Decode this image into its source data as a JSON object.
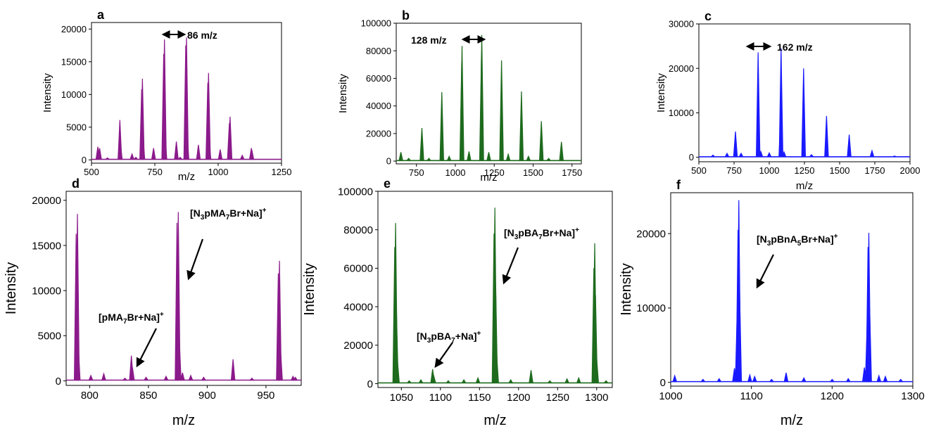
{
  "chart_data": [
    {
      "panel": "a",
      "type": "line",
      "color": "#8b1a8b",
      "xlabel": "m/z",
      "ylabel": "Intensity",
      "xlim": [
        500,
        1250
      ],
      "ylim": [
        -500,
        21000
      ],
      "xticks": [
        500,
        750,
        1000,
        1250
      ],
      "yticks": [
        0,
        5000,
        10000,
        15000,
        20000
      ],
      "peaks": [
        {
          "x": 525,
          "y": 2000
        },
        {
          "x": 532,
          "y": 1800
        },
        {
          "x": 563,
          "y": 300
        },
        {
          "x": 612,
          "y": 6100
        },
        {
          "x": 614,
          "y": 2500
        },
        {
          "x": 660,
          "y": 900
        },
        {
          "x": 675,
          "y": 400
        },
        {
          "x": 698,
          "y": 10800
        },
        {
          "x": 701,
          "y": 12400
        },
        {
          "x": 703,
          "y": 3500
        },
        {
          "x": 745,
          "y": 1800
        },
        {
          "x": 785,
          "y": 16200
        },
        {
          "x": 788,
          "y": 18400
        },
        {
          "x": 790,
          "y": 4000
        },
        {
          "x": 835,
          "y": 2800
        },
        {
          "x": 850,
          "y": 400
        },
        {
          "x": 872,
          "y": 17500
        },
        {
          "x": 875,
          "y": 18700
        },
        {
          "x": 877,
          "y": 4500
        },
        {
          "x": 922,
          "y": 2300
        },
        {
          "x": 959,
          "y": 11800
        },
        {
          "x": 962,
          "y": 13300
        },
        {
          "x": 964,
          "y": 3000
        },
        {
          "x": 1008,
          "y": 1600
        },
        {
          "x": 1044,
          "y": 5600
        },
        {
          "x": 1047,
          "y": 6600
        },
        {
          "x": 1095,
          "y": 700
        },
        {
          "x": 1131,
          "y": 1800
        },
        {
          "x": 1133,
          "y": 1500
        }
      ],
      "annotations": [
        {
          "text": "86 m/z"
        }
      ]
    },
    {
      "panel": "b",
      "type": "line",
      "color": "#1e6b1e",
      "xlabel": "m/z",
      "ylabel": "Intensity",
      "xlim": [
        620,
        1810
      ],
      "ylim": [
        -2000,
        100000
      ],
      "xticks": [
        750,
        1000,
        1250,
        1500,
        1750
      ],
      "yticks": [
        0,
        20000,
        40000,
        60000,
        80000,
        100000
      ],
      "peaks": [
        {
          "x": 650,
          "y": 6500
        },
        {
          "x": 700,
          "y": 2000
        },
        {
          "x": 785,
          "y": 24000
        },
        {
          "x": 830,
          "y": 2000
        },
        {
          "x": 913,
          "y": 50000
        },
        {
          "x": 960,
          "y": 3500
        },
        {
          "x": 1041,
          "y": 72000
        },
        {
          "x": 1043,
          "y": 83500
        },
        {
          "x": 1088,
          "y": 7000
        },
        {
          "x": 1168,
          "y": 78000
        },
        {
          "x": 1170,
          "y": 91500
        },
        {
          "x": 1215,
          "y": 6500
        },
        {
          "x": 1297,
          "y": 73000
        },
        {
          "x": 1340,
          "y": 5000
        },
        {
          "x": 1425,
          "y": 50500
        },
        {
          "x": 1470,
          "y": 3500
        },
        {
          "x": 1553,
          "y": 29000
        },
        {
          "x": 1600,
          "y": 2000
        },
        {
          "x": 1682,
          "y": 14000
        }
      ],
      "annotations": [
        {
          "text": "128 m/z"
        }
      ]
    },
    {
      "panel": "c",
      "type": "line",
      "color": "#1a1aff",
      "xlabel": "m/z",
      "ylabel": "Intensity",
      "xlim": [
        500,
        2000
      ],
      "ylim": [
        -1000,
        30000
      ],
      "xticks": [
        500,
        750,
        1000,
        1250,
        1500,
        1750,
        2000
      ],
      "yticks": [
        0,
        10000,
        20000,
        30000
      ],
      "peaks": [
        {
          "x": 600,
          "y": 500
        },
        {
          "x": 700,
          "y": 900
        },
        {
          "x": 760,
          "y": 5800
        },
        {
          "x": 800,
          "y": 900
        },
        {
          "x": 921,
          "y": 23600
        },
        {
          "x": 940,
          "y": 1300
        },
        {
          "x": 1000,
          "y": 1000
        },
        {
          "x": 1082,
          "y": 9000
        },
        {
          "x": 1084,
          "y": 24500
        },
        {
          "x": 1105,
          "y": 1200
        },
        {
          "x": 1244,
          "y": 20000
        },
        {
          "x": 1300,
          "y": 600
        },
        {
          "x": 1407,
          "y": 9300
        },
        {
          "x": 1568,
          "y": 5100
        },
        {
          "x": 1730,
          "y": 1500
        },
        {
          "x": 1890,
          "y": 300
        }
      ],
      "annotations": [
        {
          "text": "162 m/z"
        }
      ]
    },
    {
      "panel": "d",
      "type": "line",
      "color": "#8b1a8b",
      "xlabel": "m/z",
      "ylabel": "Intensity",
      "xlim": [
        780,
        980
      ],
      "ylim": [
        -500,
        21000
      ],
      "xticks": [
        800,
        850,
        900,
        950
      ],
      "yticks": [
        0,
        5000,
        10000,
        15000,
        20000
      ],
      "peaks": [
        {
          "x": 788.5,
          "y": 16300
        },
        {
          "x": 789.6,
          "y": 18500
        },
        {
          "x": 790.3,
          "y": 4000
        },
        {
          "x": 801,
          "y": 600
        },
        {
          "x": 812,
          "y": 800
        },
        {
          "x": 830,
          "y": 300
        },
        {
          "x": 835.5,
          "y": 2800
        },
        {
          "x": 836.4,
          "y": 1500
        },
        {
          "x": 848,
          "y": 400
        },
        {
          "x": 865,
          "y": 500
        },
        {
          "x": 874.3,
          "y": 17500
        },
        {
          "x": 875.4,
          "y": 18700
        },
        {
          "x": 876.2,
          "y": 4800
        },
        {
          "x": 879,
          "y": 900
        },
        {
          "x": 886,
          "y": 600
        },
        {
          "x": 897,
          "y": 400
        },
        {
          "x": 922,
          "y": 2400
        },
        {
          "x": 938,
          "y": 300
        },
        {
          "x": 960.5,
          "y": 11900
        },
        {
          "x": 961.5,
          "y": 13300
        },
        {
          "x": 962.4,
          "y": 3500
        },
        {
          "x": 973,
          "y": 500
        },
        {
          "x": 975,
          "y": 400
        }
      ],
      "annotations": [
        {
          "main": "[pMA",
          "sub1": "7",
          "rest": "Br+Na]",
          "sup": "+"
        },
        {
          "main": "[N",
          "sub1": "3",
          "mid": "pMA",
          "sub2": "7",
          "rest": "Br+Na]",
          "sup": "+"
        }
      ]
    },
    {
      "panel": "e",
      "type": "line",
      "color": "#1e6b1e",
      "xlabel": "m/z",
      "ylabel": "Intensity",
      "xlim": [
        1020,
        1320
      ],
      "ylim": [
        -2000,
        100000
      ],
      "xticks": [
        1050,
        1100,
        1150,
        1200,
        1250,
        1300
      ],
      "yticks": [
        0,
        20000,
        40000,
        60000,
        80000,
        100000
      ],
      "peaks": [
        {
          "x": 1041.5,
          "y": 71000
        },
        {
          "x": 1042.6,
          "y": 83500
        },
        {
          "x": 1043.6,
          "y": 40000
        },
        {
          "x": 1045,
          "y": 12000
        },
        {
          "x": 1060,
          "y": 1500
        },
        {
          "x": 1075,
          "y": 2000
        },
        {
          "x": 1090,
          "y": 7500
        },
        {
          "x": 1091.5,
          "y": 4000
        },
        {
          "x": 1110,
          "y": 1500
        },
        {
          "x": 1130,
          "y": 2000
        },
        {
          "x": 1148,
          "y": 3000
        },
        {
          "x": 1168.6,
          "y": 78000
        },
        {
          "x": 1169.7,
          "y": 91500
        },
        {
          "x": 1170.7,
          "y": 52000
        },
        {
          "x": 1172,
          "y": 15000
        },
        {
          "x": 1190,
          "y": 2000
        },
        {
          "x": 1216,
          "y": 7000
        },
        {
          "x": 1240,
          "y": 1500
        },
        {
          "x": 1262,
          "y": 2500
        },
        {
          "x": 1277,
          "y": 3000
        },
        {
          "x": 1296.4,
          "y": 60000
        },
        {
          "x": 1297.5,
          "y": 73000
        },
        {
          "x": 1298.5,
          "y": 46000
        },
        {
          "x": 1300,
          "y": 13000
        },
        {
          "x": 1312,
          "y": 1500
        }
      ],
      "annotations": [
        {
          "main": "[N",
          "sub1": "3",
          "mid": "pBA",
          "sub2": "7",
          "rest": "+Na]",
          "sup": "+"
        },
        {
          "main": "[N",
          "sub1": "3",
          "mid": "pBA",
          "sub2": "7",
          "rest": "Br+Na]",
          "sup": "+"
        }
      ]
    },
    {
      "panel": "f",
      "type": "line",
      "color": "#1a1aff",
      "xlabel": "m/z",
      "ylabel": "Intensity",
      "xlim": [
        1000,
        1300
      ],
      "ylim": [
        -500,
        25500
      ],
      "xticks": [
        1000,
        1100,
        1200,
        1300
      ],
      "yticks": [
        0,
        10000,
        20000
      ],
      "peaks": [
        {
          "x": 1005,
          "y": 900
        },
        {
          "x": 1040,
          "y": 400
        },
        {
          "x": 1060,
          "y": 500
        },
        {
          "x": 1079,
          "y": 1900
        },
        {
          "x": 1082.4,
          "y": 9500
        },
        {
          "x": 1083.4,
          "y": 20500
        },
        {
          "x": 1084.4,
          "y": 24500
        },
        {
          "x": 1085.4,
          "y": 12000
        },
        {
          "x": 1098,
          "y": 1000
        },
        {
          "x": 1104,
          "y": 800
        },
        {
          "x": 1125,
          "y": 400
        },
        {
          "x": 1143,
          "y": 1300
        },
        {
          "x": 1165,
          "y": 600
        },
        {
          "x": 1200,
          "y": 400
        },
        {
          "x": 1220,
          "y": 500
        },
        {
          "x": 1240,
          "y": 2000
        },
        {
          "x": 1243.5,
          "y": 8000
        },
        {
          "x": 1244.5,
          "y": 18200
        },
        {
          "x": 1245.5,
          "y": 20100
        },
        {
          "x": 1246.5,
          "y": 10000
        },
        {
          "x": 1258,
          "y": 900
        },
        {
          "x": 1266,
          "y": 800
        },
        {
          "x": 1285,
          "y": 400
        }
      ],
      "annotations": [
        {
          "main": "[N",
          "sub1": "3",
          "mid": "pBnA",
          "sub2": "5",
          "rest": "Br+Na]",
          "sup": "+"
        }
      ]
    }
  ]
}
